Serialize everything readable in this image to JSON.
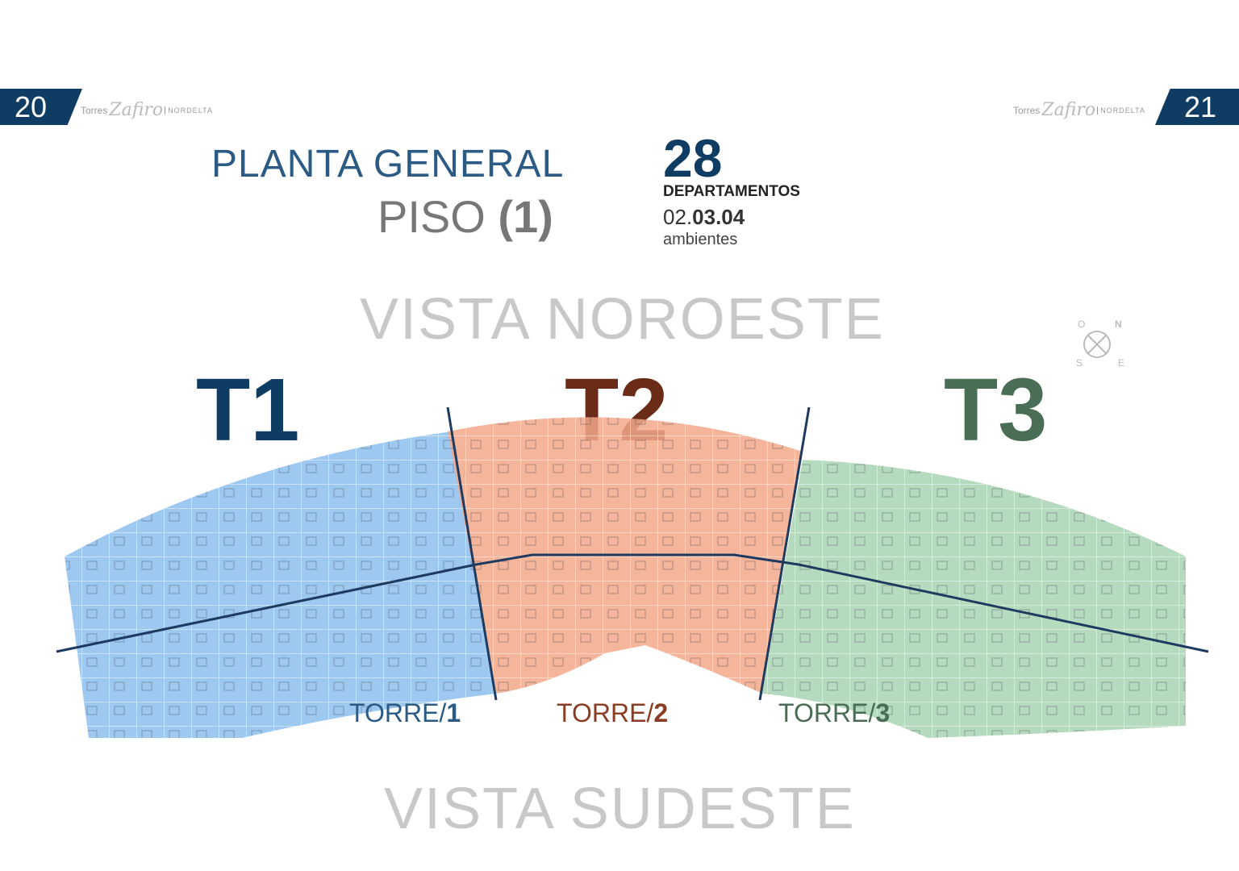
{
  "header": {
    "left_page": "20",
    "right_page": "21",
    "brand_prefix": "Torres",
    "brand_script": "Zafiro",
    "brand_location": "NORDELTA"
  },
  "title": {
    "line1": "PLANTA GENERAL",
    "line2_prefix": "PISO",
    "line2_floor": "(1)"
  },
  "summary": {
    "count": "28",
    "count_label": "DEPARTAMENTOS",
    "rooms_light": "02.",
    "rooms_bold": "03.04",
    "rooms_label": "ambientes"
  },
  "views": {
    "top": "VISTA NOROESTE",
    "bottom": "VISTA SUDESTE"
  },
  "compass": {
    "o": "O",
    "n": "N",
    "s": "S",
    "e": "E"
  },
  "towers": [
    {
      "code": "T1",
      "label_prefix": "TORRE/",
      "label_num": "1",
      "color": "#0f3c63",
      "fill": "#8cc0ee"
    },
    {
      "code": "T2",
      "label_prefix": "TORRE/",
      "label_num": "2",
      "color": "#6b2c17",
      "fill": "#f2a88a"
    },
    {
      "code": "T3",
      "label_prefix": "TORRE/",
      "label_num": "3",
      "color": "#4a6e55",
      "fill": "#a9d4b2"
    }
  ]
}
